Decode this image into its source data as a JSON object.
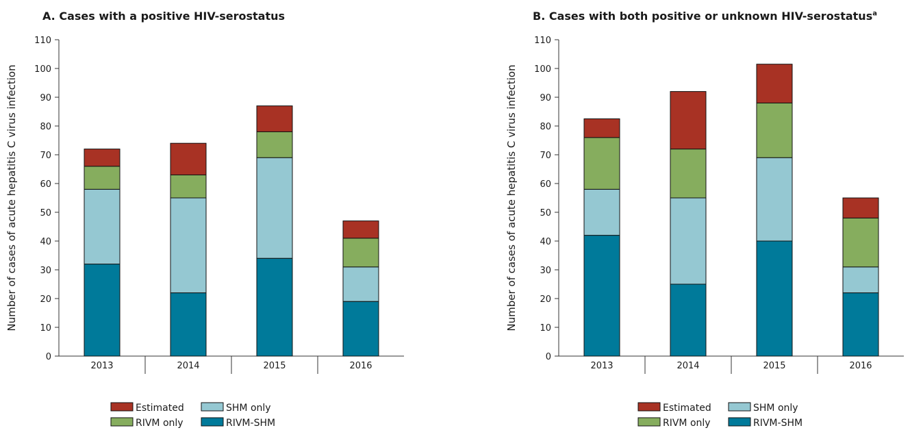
{
  "chart_data": [
    {
      "type": "bar",
      "stacked": true,
      "title": "A. Cases with a positive HIV-serostatus",
      "title_superscript": "",
      "xlabel": "",
      "ylabel": "Number of cases of acute hepatitis C virus infection",
      "ylim": [
        0,
        110
      ],
      "yticks": [
        0,
        10,
        20,
        30,
        40,
        50,
        60,
        70,
        80,
        90,
        100,
        110
      ],
      "grid": false,
      "categories": [
        "2013",
        "2014",
        "2015",
        "2016"
      ],
      "series": [
        {
          "name": "RIVM-SHM",
          "color": "#007a9a",
          "values": [
            32,
            22,
            34,
            19
          ]
        },
        {
          "name": "SHM only",
          "color": "#95c8d2",
          "values": [
            26,
            33,
            35,
            12
          ]
        },
        {
          "name": "RIVM only",
          "color": "#86ad5e",
          "values": [
            8,
            8,
            9,
            10
          ]
        },
        {
          "name": "Estimated",
          "color": "#a83224",
          "values": [
            6,
            11,
            9,
            6
          ]
        }
      ],
      "legend": {
        "placement": "bottom",
        "order": [
          "Estimated",
          "SHM only",
          "RIVM only",
          "RIVM-SHM"
        ]
      }
    },
    {
      "type": "bar",
      "stacked": true,
      "title": "B. Cases with both positive or unknown HIV-serostatus",
      "title_superscript": "a",
      "xlabel": "",
      "ylabel": "Number of cases of acute hepatitis C virus infection",
      "ylim": [
        0,
        110
      ],
      "yticks": [
        0,
        10,
        20,
        30,
        40,
        50,
        60,
        70,
        80,
        90,
        100,
        110
      ],
      "grid": false,
      "categories": [
        "2013",
        "2014",
        "2015",
        "2016"
      ],
      "series": [
        {
          "name": "RIVM-SHM",
          "color": "#007a9a",
          "values": [
            42,
            25,
            40,
            22
          ]
        },
        {
          "name": "SHM only",
          "color": "#95c8d2",
          "values": [
            16,
            30,
            29,
            9
          ]
        },
        {
          "name": "RIVM only",
          "color": "#86ad5e",
          "values": [
            18,
            17,
            19,
            17
          ]
        },
        {
          "name": "Estimated",
          "color": "#a83224",
          "values": [
            6.5,
            20,
            13.5,
            7
          ]
        }
      ],
      "legend": {
        "placement": "bottom",
        "order": [
          "Estimated",
          "SHM only",
          "RIVM only",
          "RIVM-SHM"
        ]
      }
    }
  ]
}
